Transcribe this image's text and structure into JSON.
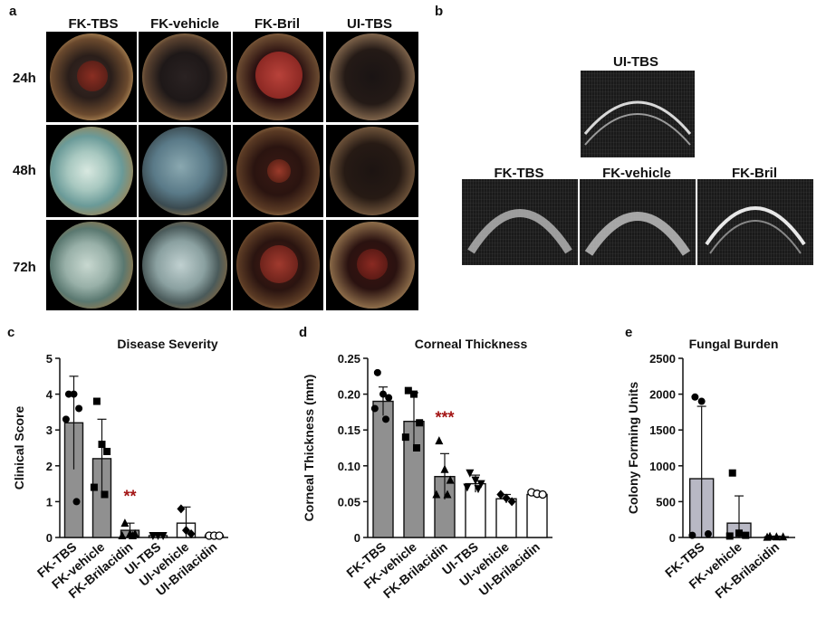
{
  "panel_a": {
    "letter": "a",
    "columns": [
      "FK-TBS",
      "FK-vehicle",
      "FK-Bril",
      "UI-TBS"
    ],
    "rows": [
      "24h",
      "48h",
      "72h"
    ]
  },
  "panel_b": {
    "letter": "b",
    "top_label": "UI-TBS",
    "bottom_labels": [
      "FK-TBS",
      "FK-vehicle",
      "FK-Bril"
    ]
  },
  "colors": {
    "significance": "#a31515",
    "filled_bar": "#909090",
    "light_bar": "#b8b8c4",
    "open_bar": "#ffffff"
  },
  "chart_data": [
    {
      "letter": "c",
      "type": "bar",
      "title": "Disease Severity",
      "ylabel": "Clinical Score",
      "xlabel": "",
      "ylim": [
        0,
        5
      ],
      "yticks": [
        0,
        1,
        2,
        3,
        4,
        5
      ],
      "categories": [
        "FK-TBS",
        "FK-vehicle",
        "FK-Brilacidin",
        "UI-TBS",
        "UI-vehicle",
        "UI-Brilacidin"
      ],
      "values": [
        3.2,
        2.2,
        0.2,
        0.05,
        0.4,
        0.05
      ],
      "errors": [
        1.3,
        1.1,
        0.2,
        0.05,
        0.45,
        0.05
      ],
      "fill": [
        "filled",
        "filled",
        "filled",
        "open",
        "open",
        "open"
      ],
      "markers": [
        "circle",
        "square",
        "triangle",
        "triangle-down",
        "diamond",
        "open-circle"
      ],
      "points": [
        [
          4,
          4,
          3.6,
          3.3,
          1
        ],
        [
          3.8,
          2.6,
          2.4,
          1.4,
          1.2
        ],
        [
          0.4,
          0.1,
          0.1,
          0.05,
          0.05
        ],
        [
          0.05,
          0.05,
          0.05
        ],
        [
          0.8,
          0.2,
          0.1
        ],
        [
          0.05,
          0.05,
          0.05
        ]
      ],
      "significance": [
        {
          "index": 2,
          "label": "**",
          "y": 1.0
        }
      ]
    },
    {
      "letter": "d",
      "type": "bar",
      "title": "Corneal Thickness",
      "ylabel": "Corneal Thickness (mm)",
      "xlabel": "",
      "ylim": [
        0,
        0.25
      ],
      "yticks": [
        "0",
        "0.05",
        "0.10",
        "0.15",
        "0.20",
        "0.25"
      ],
      "categories": [
        "FK-TBS",
        "FK-vehicle",
        "FK-Brilacidin",
        "UI-TBS",
        "UI-vehicle",
        "UI-Brilacidin"
      ],
      "values": [
        0.19,
        0.162,
        0.085,
        0.075,
        0.054,
        0.06
      ],
      "errors": [
        0.02,
        0.04,
        0.032,
        0.012,
        0.006,
        0.004
      ],
      "fill": [
        "filled",
        "filled",
        "filled",
        "open",
        "open",
        "open"
      ],
      "markers": [
        "circle",
        "square",
        "triangle",
        "triangle-down",
        "diamond",
        "open-circle"
      ],
      "points": [
        [
          0.23,
          0.2,
          0.195,
          0.18,
          0.165
        ],
        [
          0.205,
          0.2,
          0.16,
          0.14,
          0.125
        ],
        [
          0.135,
          0.095,
          0.08,
          0.06,
          0.06
        ],
        [
          0.09,
          0.08,
          0.075,
          0.07,
          0.068
        ],
        [
          0.06,
          0.055,
          0.05
        ],
        [
          0.063,
          0.061,
          0.06
        ]
      ],
      "significance": [
        {
          "index": 2,
          "label": "***",
          "y": 0.16
        }
      ]
    },
    {
      "letter": "e",
      "type": "bar",
      "title": "Fungal Burden",
      "ylabel": "Colony Forming Units",
      "xlabel": "",
      "ylim": [
        0,
        2500
      ],
      "yticks": [
        0,
        500,
        1000,
        1500,
        2000,
        2500
      ],
      "categories": [
        "FK-TBS",
        "FK-vehicle",
        "FK-Brilacidin"
      ],
      "values": [
        820,
        200,
        10
      ],
      "errors": [
        1010,
        380,
        10
      ],
      "fill": [
        "light",
        "light",
        "light"
      ],
      "markers": [
        "circle",
        "square",
        "triangle"
      ],
      "points": [
        [
          1960,
          1900,
          50,
          30
        ],
        [
          900,
          60,
          30,
          20
        ],
        [
          15,
          10,
          10,
          5
        ]
      ],
      "significance": []
    }
  ]
}
